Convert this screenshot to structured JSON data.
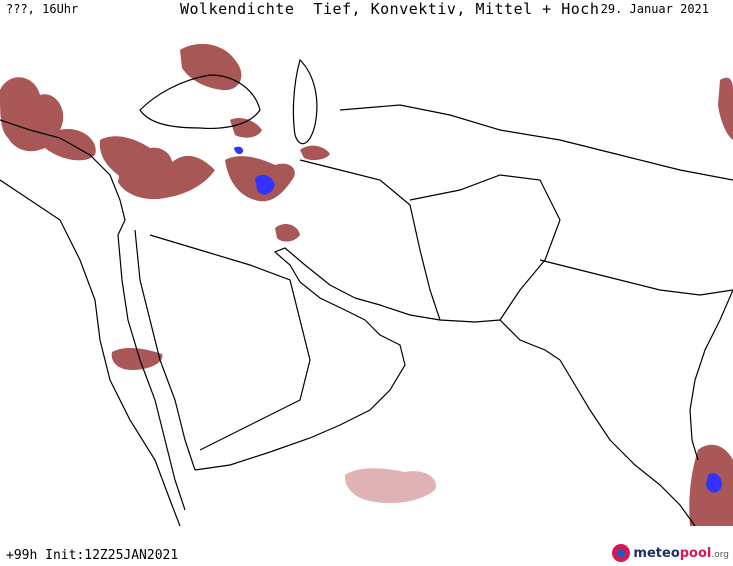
{
  "header": {
    "left_label": "???, 16Uhr",
    "title": "Wolkendichte  Tief, Konvektiv, Mittel + Hoch",
    "date": "29. Januar 2021"
  },
  "footer": {
    "init": "+99h Init:12Z25JAN2021",
    "logo_prefix": "meteo",
    "logo_accent": "pool",
    "logo_suffix": ".org"
  },
  "colors": {
    "cloud_dark": "#9a3a3a",
    "cloud_light": "#d9a6a6",
    "convective": "#3333ff",
    "coastline": "#000000"
  }
}
